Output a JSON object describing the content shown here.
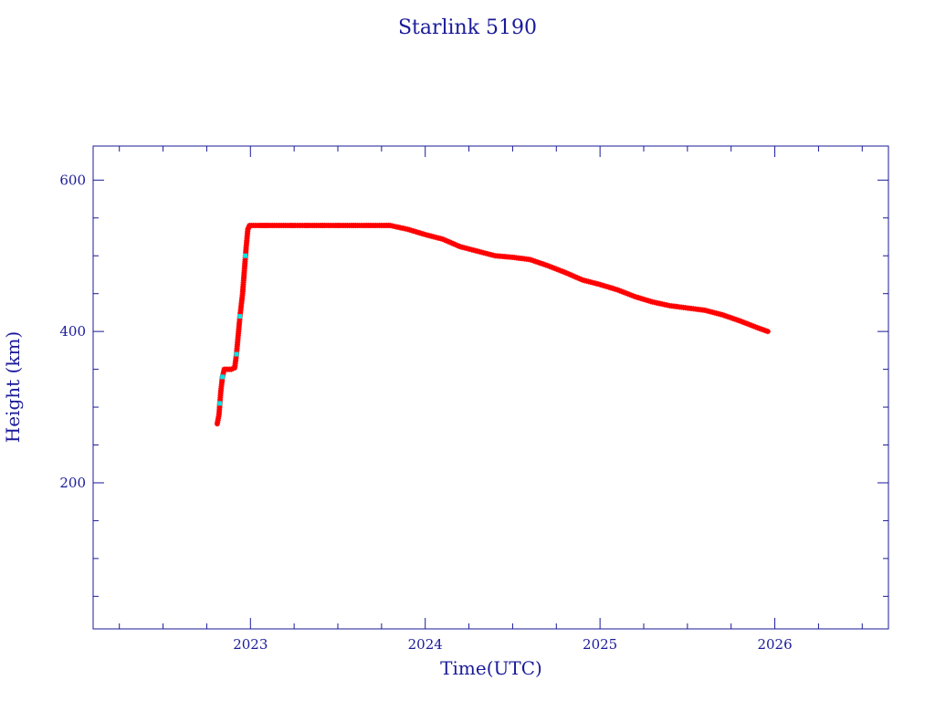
{
  "chart_data": {
    "type": "scatter",
    "title": "Starlink 5190",
    "xlabel": "Time(UTC)",
    "ylabel": "Height (km)",
    "xlim": [
      2022.1,
      2026.65
    ],
    "ylim": [
      7,
      645
    ],
    "x_ticks": [
      2023,
      2024,
      2025,
      2026
    ],
    "x_tick_labels": [
      "2023",
      "2024",
      "2025",
      "2026"
    ],
    "y_ticks": [
      200,
      400,
      600
    ],
    "y_tick_labels": [
      "200",
      "400",
      "600"
    ],
    "grid": false,
    "colors": {
      "frame": "#1a1a9a",
      "primary_marker": "#ff0000",
      "secondary_marker": "#00e5e5"
    },
    "series": [
      {
        "marker": "star",
        "color": "#ff0000",
        "points": [
          [
            2022.81,
            278
          ],
          [
            2022.82,
            290
          ],
          [
            2022.825,
            305
          ],
          [
            2022.83,
            320
          ],
          [
            2022.84,
            340
          ],
          [
            2022.85,
            350
          ],
          [
            2022.87,
            350
          ],
          [
            2022.89,
            350
          ],
          [
            2022.91,
            352
          ],
          [
            2022.92,
            370
          ],
          [
            2022.93,
            395
          ],
          [
            2022.94,
            420
          ],
          [
            2022.955,
            450
          ],
          [
            2022.965,
            480
          ],
          [
            2022.975,
            510
          ],
          [
            2022.985,
            535
          ],
          [
            2022.995,
            540
          ],
          [
            2023.05,
            540
          ],
          [
            2023.2,
            540
          ],
          [
            2023.4,
            540
          ],
          [
            2023.6,
            540
          ],
          [
            2023.75,
            540
          ],
          [
            2023.8,
            540
          ],
          [
            2023.9,
            535
          ],
          [
            2024.0,
            528
          ],
          [
            2024.1,
            522
          ],
          [
            2024.2,
            512
          ],
          [
            2024.3,
            506
          ],
          [
            2024.4,
            500
          ],
          [
            2024.5,
            498
          ],
          [
            2024.6,
            495
          ],
          [
            2024.7,
            487
          ],
          [
            2024.8,
            478
          ],
          [
            2024.9,
            468
          ],
          [
            2025.0,
            462
          ],
          [
            2025.1,
            455
          ],
          [
            2025.2,
            446
          ],
          [
            2025.3,
            439
          ],
          [
            2025.4,
            434
          ],
          [
            2025.5,
            431
          ],
          [
            2025.6,
            428
          ],
          [
            2025.7,
            422
          ],
          [
            2025.8,
            414
          ],
          [
            2025.9,
            405
          ],
          [
            2025.96,
            400
          ]
        ]
      },
      {
        "marker": "dot",
        "color": "#00e5e5",
        "points": [
          [
            2022.825,
            305
          ],
          [
            2022.84,
            340
          ],
          [
            2022.92,
            370
          ],
          [
            2022.94,
            420
          ],
          [
            2022.97,
            500
          ]
        ]
      }
    ]
  }
}
